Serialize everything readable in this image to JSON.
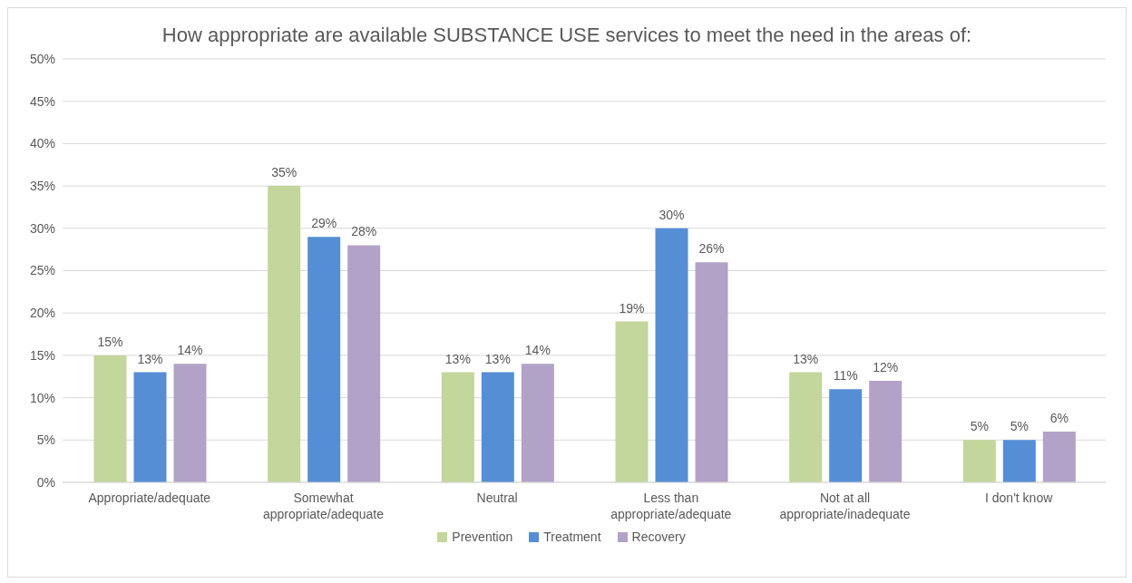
{
  "chart_data": {
    "type": "bar",
    "title": "How appropriate are available SUBSTANCE USE services to meet the need in the areas of:",
    "categories": [
      "Appropriate/adequate",
      "Somewhat appropriate/adequate",
      "Neutral",
      "Less than appropriate/adequate",
      "Not at all appropriate/inadequate",
      "I don't know"
    ],
    "series": [
      {
        "name": "Prevention",
        "color": "#c3d69b",
        "values": [
          15,
          35,
          13,
          19,
          13,
          5
        ],
        "value_labels": [
          "15%",
          "35%",
          "13%",
          "19%",
          "13%",
          "5%"
        ]
      },
      {
        "name": "Treatment",
        "color": "#558ed5",
        "values": [
          13,
          29,
          13,
          30,
          11,
          5
        ],
        "value_labels": [
          "13%",
          "29%",
          "13%",
          "30%",
          "11%",
          "5%"
        ]
      },
      {
        "name": "Recovery",
        "color": "#b3a2c7",
        "values": [
          14,
          28,
          14,
          26,
          12,
          6
        ],
        "value_labels": [
          "14%",
          "28%",
          "14%",
          "26%",
          "12%",
          "6%"
        ]
      }
    ],
    "ylim": [
      0,
      50
    ],
    "yticks": [
      {
        "value": 0,
        "label": "0%"
      },
      {
        "value": 5,
        "label": "5%"
      },
      {
        "value": 10,
        "label": "10%"
      },
      {
        "value": 15,
        "label": "15%"
      },
      {
        "value": 20,
        "label": "20%"
      },
      {
        "value": 25,
        "label": "25%"
      },
      {
        "value": 30,
        "label": "30%"
      },
      {
        "value": 35,
        "label": "35%"
      },
      {
        "value": 40,
        "label": "40%"
      },
      {
        "value": 45,
        "label": "45%"
      },
      {
        "value": 50,
        "label": "50%"
      }
    ],
    "grid": "y",
    "legend": "bottom"
  }
}
